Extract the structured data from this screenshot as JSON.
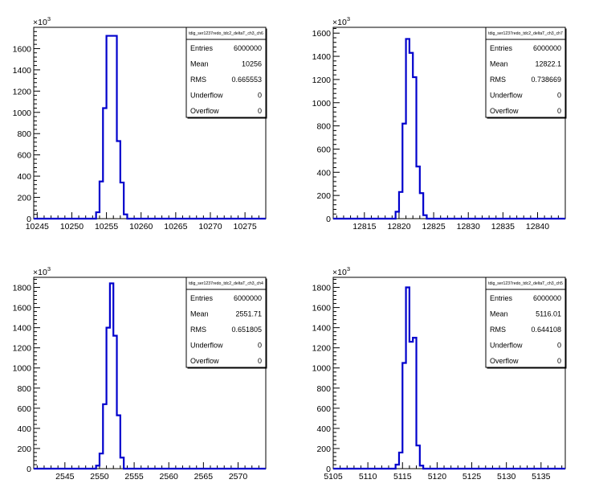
{
  "chart_data": [
    {
      "type": "histogram",
      "stats": {
        "name": "tdig_ser1237redo_tdc2_deltaT_ch3_ch6",
        "rows": [
          {
            "label": "Entries",
            "value": "6000000"
          },
          {
            "label": "Mean",
            "value": "10256"
          },
          {
            "label": "RMS",
            "value": "0.665553"
          },
          {
            "label": "Underflow",
            "value": "0"
          },
          {
            "label": "Overflow",
            "value": "0"
          }
        ]
      },
      "y_multiplier": "×10",
      "y_exponent": "3",
      "xlim": [
        10244.5,
        10278
      ],
      "ylim": [
        0,
        1800
      ],
      "xticks": [
        10245,
        10250,
        10255,
        10260,
        10265,
        10270,
        10275
      ],
      "xtick_labels": [
        "10245",
        "10250",
        "10255",
        "10260",
        "10265",
        "10270",
        "10275"
      ],
      "yticks": [
        0,
        200,
        400,
        600,
        800,
        1000,
        1200,
        1400,
        1600
      ],
      "ytick_labels": [
        "0",
        "200",
        "400",
        "600",
        "800",
        "1000",
        "1200",
        "1400",
        "1600"
      ],
      "bin_width": 0.5,
      "bins": [
        [
          10253.5,
          60
        ],
        [
          10254,
          350
        ],
        [
          10254.5,
          1040
        ],
        [
          10255,
          1720
        ],
        [
          10255.5,
          1720
        ],
        [
          10256,
          1720
        ],
        [
          10256.5,
          730
        ],
        [
          10257,
          340
        ],
        [
          10257.5,
          40
        ]
      ]
    },
    {
      "type": "histogram",
      "stats": {
        "name": "tdig_ser1237redo_tdc2_deltaT_ch3_ch7",
        "rows": [
          {
            "label": "Entries",
            "value": "6000000"
          },
          {
            "label": "Mean",
            "value": "12822.1"
          },
          {
            "label": "RMS",
            "value": "0.738669"
          },
          {
            "label": "Underflow",
            "value": "0"
          },
          {
            "label": "Overflow",
            "value": "0"
          }
        ]
      },
      "y_multiplier": "×10",
      "y_exponent": "3",
      "xlim": [
        12810.5,
        12844
      ],
      "ylim": [
        0,
        1650
      ],
      "xticks": [
        12815,
        12820,
        12825,
        12830,
        12835,
        12840
      ],
      "xtick_labels": [
        "12815",
        "12820",
        "12825",
        "12830",
        "12835",
        "12840"
      ],
      "yticks": [
        0,
        200,
        400,
        600,
        800,
        1000,
        1200,
        1400,
        1600
      ],
      "ytick_labels": [
        "0",
        "200",
        "400",
        "600",
        "800",
        "1000",
        "1200",
        "1400",
        "1600"
      ],
      "bin_width": 0.5,
      "bins": [
        [
          12819.5,
          60
        ],
        [
          12820,
          230
        ],
        [
          12820.5,
          820
        ],
        [
          12821,
          1550
        ],
        [
          12821.5,
          1430
        ],
        [
          12822,
          1220
        ],
        [
          12822.5,
          450
        ],
        [
          12823,
          220
        ],
        [
          12823.5,
          30
        ]
      ]
    },
    {
      "type": "histogram",
      "stats": {
        "name": "tdig_ser1237redo_tdc2_deltaT_ch3_ch4",
        "rows": [
          {
            "label": "Entries",
            "value": "6000000"
          },
          {
            "label": "Mean",
            "value": "2551.71"
          },
          {
            "label": "RMS",
            "value": "0.651805"
          },
          {
            "label": "Underflow",
            "value": "0"
          },
          {
            "label": "Overflow",
            "value": "0"
          }
        ]
      },
      "y_multiplier": "×10",
      "y_exponent": "3",
      "xlim": [
        2540.5,
        2574
      ],
      "ylim": [
        0,
        1900
      ],
      "xticks": [
        2545,
        2550,
        2555,
        2560,
        2565,
        2570
      ],
      "xtick_labels": [
        "2545",
        "2550",
        "2555",
        "2560",
        "2565",
        "2570"
      ],
      "yticks": [
        0,
        200,
        400,
        600,
        800,
        1000,
        1200,
        1400,
        1600,
        1800
      ],
      "ytick_labels": [
        "0",
        "200",
        "400",
        "600",
        "800",
        "1000",
        "1200",
        "1400",
        "1600",
        "1800"
      ],
      "bin_width": 0.5,
      "bins": [
        [
          2549.5,
          30
        ],
        [
          2550,
          150
        ],
        [
          2550.5,
          640
        ],
        [
          2551,
          1400
        ],
        [
          2551.5,
          1840
        ],
        [
          2552,
          1320
        ],
        [
          2552.5,
          530
        ],
        [
          2553,
          110
        ]
      ]
    },
    {
      "type": "histogram",
      "stats": {
        "name": "tdig_ser1237redo_tdc2_deltaT_ch3_ch5",
        "rows": [
          {
            "label": "Entries",
            "value": "6000000"
          },
          {
            "label": "Mean",
            "value": "5116.01"
          },
          {
            "label": "RMS",
            "value": "0.644108"
          },
          {
            "label": "Underflow",
            "value": "0"
          },
          {
            "label": "Overflow",
            "value": "0"
          }
        ]
      },
      "y_multiplier": "×10",
      "y_exponent": "3",
      "xlim": [
        5105,
        5138.5
      ],
      "ylim": [
        0,
        1900
      ],
      "xticks": [
        5105,
        5110,
        5115,
        5120,
        5125,
        5130,
        5135
      ],
      "xtick_labels": [
        "5105",
        "5110",
        "5115",
        "5120",
        "5125",
        "5130",
        "5135"
      ],
      "yticks": [
        0,
        200,
        400,
        600,
        800,
        1000,
        1200,
        1400,
        1600,
        1800
      ],
      "ytick_labels": [
        "0",
        "200",
        "400",
        "600",
        "800",
        "1000",
        "1200",
        "1400",
        "1600",
        "1800"
      ],
      "bin_width": 0.5,
      "bins": [
        [
          5114,
          40
        ],
        [
          5114.5,
          160
        ],
        [
          5115,
          1050
        ],
        [
          5115.5,
          1800
        ],
        [
          5116,
          1260
        ],
        [
          5116.5,
          1300
        ],
        [
          5117,
          230
        ],
        [
          5117.5,
          30
        ]
      ]
    }
  ]
}
